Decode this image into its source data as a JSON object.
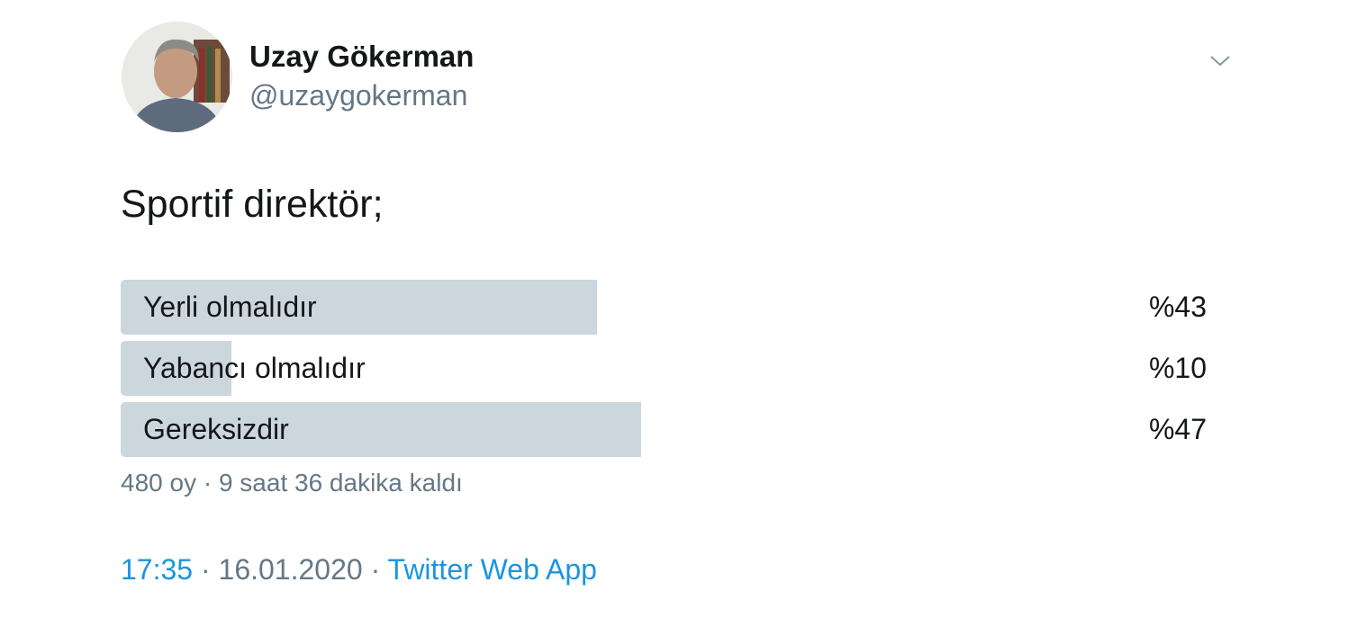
{
  "author": {
    "name": "Uzay Gökerman",
    "handle": "@uzaygokerman"
  },
  "tweet": {
    "text": "Sportif direktör;"
  },
  "poll": {
    "options": [
      {
        "label": "Yerli olmalıdır",
        "percent_label": "%43",
        "percent": 43
      },
      {
        "label": "Yabancı olmalıdır",
        "percent_label": "%10",
        "percent": 10
      },
      {
        "label": "Gereksizdir",
        "percent_label": "%47",
        "percent": 47
      }
    ],
    "meta": "480 oy · 9 saat 36 dakika kaldı"
  },
  "footer": {
    "time": "17:35",
    "date": "16.01.2020",
    "sep": " · ",
    "source": "Twitter Web App"
  },
  "colors": {
    "bar": "#ccd6dd",
    "link": "#1b95e0",
    "secondary": "#657786"
  },
  "icons": {
    "menu": "chevron-down-icon"
  }
}
